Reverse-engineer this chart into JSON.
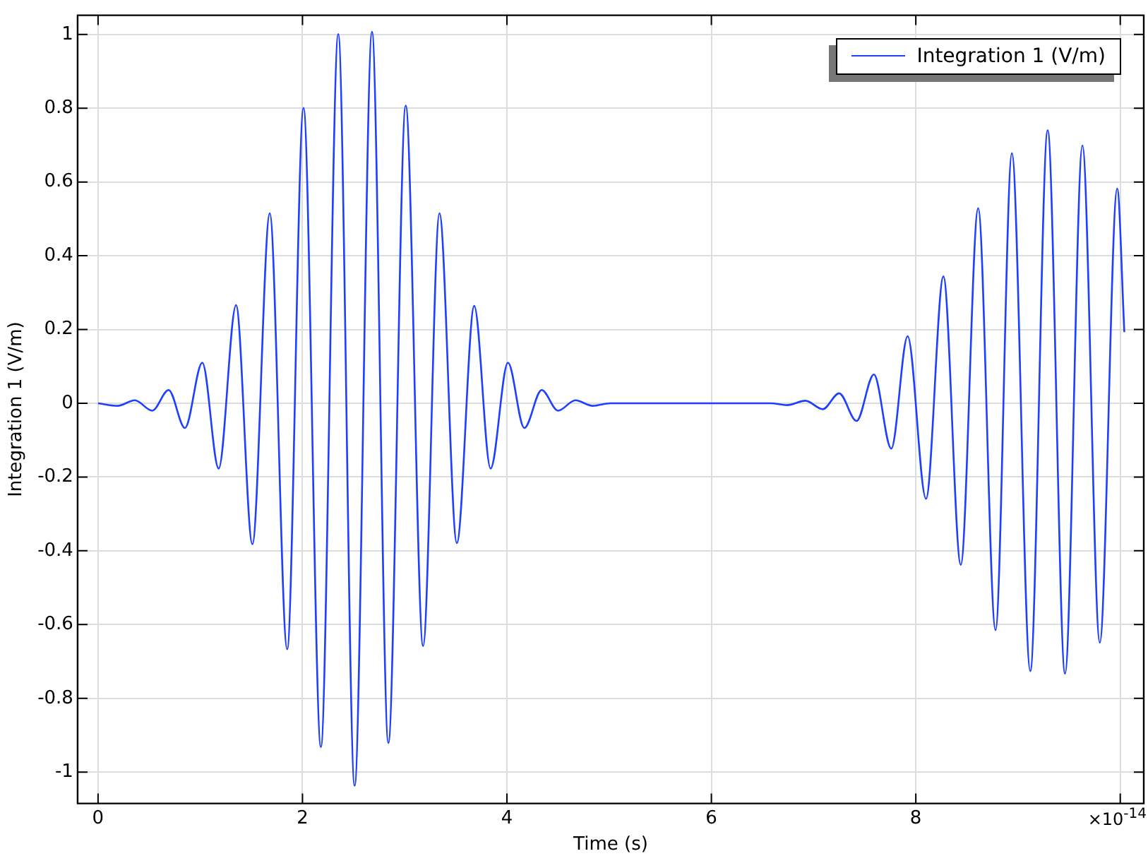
{
  "chart_data": {
    "type": "line",
    "xlabel": "Time (s)",
    "ylabel": "Integration 1 (V/m)",
    "xlim": [
      -0.2,
      10.23
    ],
    "ylim": [
      -1.085,
      1.052
    ],
    "xticks": [
      0,
      2,
      4,
      6,
      8,
      {
        "value": 10,
        "label": null
      }
    ],
    "yticks": [
      -1,
      -0.8,
      -0.6,
      -0.4,
      -0.2,
      0,
      0.2,
      0.4,
      0.6,
      0.8,
      1
    ],
    "grid": true,
    "legend": "top right",
    "marker": "none",
    "line_style": "solid",
    "annotations": [
      "×10$^{-14}$"
    ],
    "series": [
      {
        "name": "Integration 1 (V/m)",
        "color": "#1f3fff",
        "x": [
          0,
          0.19,
          0.36,
          0.53,
          0.69,
          0.85,
          1.02,
          1.18,
          1.35,
          1.51,
          1.68,
          1.85,
          2.01,
          2.18,
          2.35,
          2.51,
          2.68,
          2.84,
          3.01,
          3.18,
          3.34,
          3.51,
          3.68,
          3.84,
          4.01,
          4.17,
          4.34,
          4.5,
          4.67,
          4.84,
          5.01,
          5.5,
          6,
          6.58,
          6.74,
          6.92,
          7.09,
          7.25,
          7.42,
          7.59,
          7.76,
          7.92,
          8.1,
          8.27,
          8.44,
          8.61,
          8.78,
          8.94,
          9.12,
          9.29,
          9.46,
          9.63,
          9.8,
          9.97,
          10.04
        ],
        "values": [
          0,
          -0.007,
          0.008,
          -0.02,
          0.036,
          -0.067,
          0.11,
          -0.177,
          0.266,
          -0.382,
          0.515,
          -0.667,
          0.801,
          -0.932,
          1.001,
          -1.037,
          1.007,
          -0.921,
          0.807,
          -0.658,
          0.515,
          -0.379,
          0.264,
          -0.177,
          0.11,
          -0.067,
          0.036,
          -0.02,
          0.008,
          -0.007,
          0,
          0,
          0,
          0,
          -0.005,
          0.007,
          -0.016,
          0.027,
          -0.048,
          0.078,
          -0.123,
          0.182,
          -0.259,
          0.344,
          -0.438,
          0.529,
          -0.615,
          0.678,
          -0.726,
          0.74,
          -0.733,
          0.699,
          -0.649,
          0.582,
          0.193
        ]
      }
    ]
  }
}
